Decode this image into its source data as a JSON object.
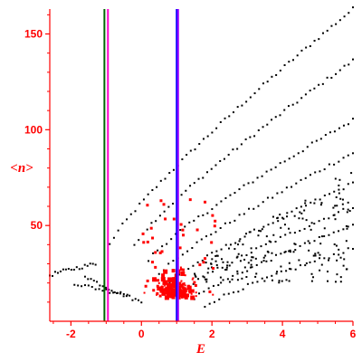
{
  "colors": {
    "axis": "#ff0000",
    "label": "#ff0000",
    "points_black": "#000000",
    "points_red": "#ff0000"
  },
  "chart_data": {
    "type": "scatter",
    "title": "",
    "xlabel": "E",
    "ylabel": "<n>",
    "xlim": [
      -2.6,
      6.0
    ],
    "ylim": [
      0,
      163
    ],
    "x_ticks": [
      -2,
      0,
      2,
      4,
      6
    ],
    "x_tick_labels": [
      "-2",
      "0",
      "2",
      "4",
      "6"
    ],
    "y_ticks": [
      50,
      100,
      150
    ],
    "y_tick_labels": [
      "50",
      "100",
      "150"
    ],
    "grid": false,
    "legend": "none",
    "vertical_lines": [
      {
        "x": -1.05,
        "color": "#006600",
        "width": 2
      },
      {
        "x": -0.95,
        "color": "#ff00cc",
        "width": 2
      },
      {
        "x": 1.0,
        "color": "#0000ff",
        "width": 2
      },
      {
        "x": 1.04,
        "color": "#9900ff",
        "width": 2
      }
    ],
    "black_curves": [
      {
        "from": [
          -0.9,
          40
        ],
        "to": [
          6.0,
          163
        ],
        "n": 58
      },
      {
        "from": [
          -0.2,
          40
        ],
        "to": [
          6.0,
          136
        ],
        "n": 52
      },
      {
        "from": [
          0.2,
          32
        ],
        "to": [
          6.0,
          105
        ],
        "n": 46
      },
      {
        "from": [
          0.5,
          25
        ],
        "to": [
          6.0,
          88
        ],
        "n": 42
      },
      {
        "from": [
          0.8,
          20
        ],
        "to": [
          6.0,
          72
        ],
        "n": 40
      },
      {
        "from": [
          1.2,
          16
        ],
        "to": [
          6.0,
          60
        ],
        "n": 36
      },
      {
        "from": [
          1.5,
          12
        ],
        "to": [
          6.0,
          50
        ],
        "n": 34
      },
      {
        "from": [
          1.8,
          8
        ],
        "to": [
          6.0,
          38
        ],
        "n": 32
      },
      {
        "from": [
          -2.6,
          24
        ],
        "to": [
          -1.3,
          30
        ],
        "n": 18
      },
      {
        "from": [
          -1.6,
          24
        ],
        "to": [
          0.0,
          10
        ],
        "n": 20
      },
      {
        "from": [
          -1.9,
          20
        ],
        "to": [
          -0.4,
          14
        ],
        "n": 16
      }
    ],
    "black_scatter_region": {
      "x": [
        1.5,
        6.0
      ],
      "y": [
        20,
        70
      ],
      "count": 160
    },
    "red_cluster": {
      "center": [
        1.0,
        12
      ],
      "spread": [
        0.45,
        8
      ],
      "count": 140
    },
    "red_scatter_region": {
      "x": [
        0.0,
        2.2
      ],
      "y": [
        15,
        65
      ],
      "count": 40
    }
  }
}
